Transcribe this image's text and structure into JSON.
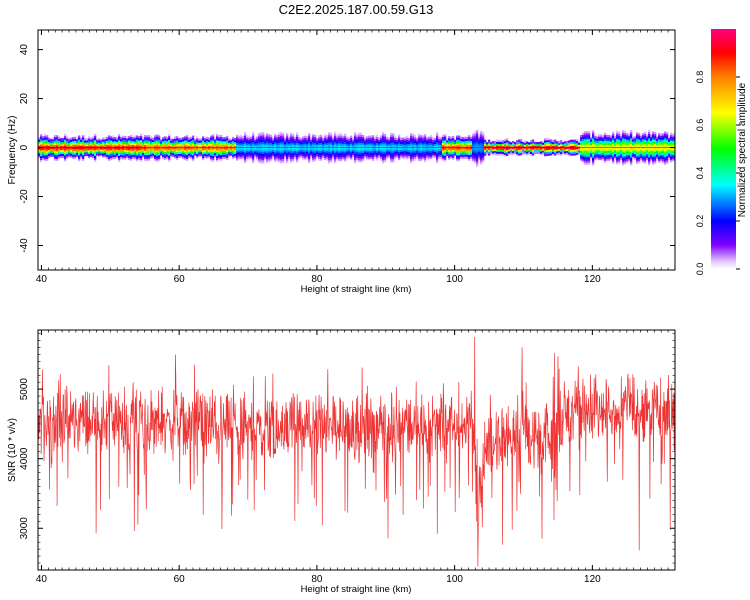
{
  "title": "C2E2.2025.187.00.59.G13",
  "colors": {
    "snr_line": "#ee3333",
    "colorbar": [
      "#7f00ff",
      "#0000ff",
      "#00ffff",
      "#00ff00",
      "#ffff00",
      "#ff7f00",
      "#ff0000",
      "#ff007f"
    ]
  },
  "chart_data": [
    {
      "type": "heatmap",
      "title": "C2E2.2025.187.00.59.G13",
      "xlabel": "Height of straight line (km)",
      "ylabel": "Frequency (Hz)",
      "xlim": [
        39.5,
        132
      ],
      "ylim": [
        -50,
        48
      ],
      "xticks": [
        40,
        60,
        80,
        100,
        120
      ],
      "yticks": [
        -40,
        -20,
        0,
        20,
        40
      ],
      "colorbar": {
        "label": "Normalized spectral amplitude",
        "range": [
          0,
          1
        ],
        "ticks": [
          "0.0",
          "0.2",
          "0.4",
          "0.6",
          "0.8"
        ]
      },
      "segments": [
        {
          "x": [
            39.5,
            55
          ],
          "peak_amplitude": 0.95,
          "half_width_hz": 3
        },
        {
          "x": [
            55,
            68
          ],
          "peak_amplitude": 0.88,
          "half_width_hz": 3
        },
        {
          "x": [
            68,
            98
          ],
          "peak_amplitude": 0.35,
          "half_width_hz": 4
        },
        {
          "x": [
            98,
            102.5
          ],
          "peak_amplitude": 0.9,
          "half_width_hz": 3
        },
        {
          "x": [
            102.5,
            104
          ],
          "peak_amplitude": 0.3,
          "half_width_hz": 5
        },
        {
          "x": [
            104,
            118
          ],
          "peak_amplitude": 1.0,
          "half_width_hz": 2
        },
        {
          "x": [
            118,
            132
          ],
          "peak_amplitude": 0.7,
          "half_width_hz": 4
        }
      ]
    },
    {
      "type": "line",
      "xlabel": "Height of straight line (km)",
      "ylabel": "SNR (10 * v/v)",
      "xlim": [
        39.5,
        132
      ],
      "ylim": [
        2400,
        5850
      ],
      "xticks": [
        40,
        60,
        80,
        100,
        120
      ],
      "yticks": [
        3000,
        4000,
        5000
      ],
      "trend": {
        "x": [
          39.5,
          45,
          55,
          62,
          70,
          80,
          90,
          98,
          101,
          102.5,
          103.3,
          104.5,
          107,
          108.5,
          110,
          111.5,
          114,
          116,
          120,
          126,
          132
        ],
        "y": [
          4500,
          4550,
          4550,
          4500,
          4480,
          4470,
          4460,
          4480,
          4380,
          4800,
          3300,
          4200,
          4300,
          4400,
          4600,
          4200,
          4300,
          4700,
          4700,
          4750,
          4650
        ]
      },
      "spikes": [
        {
          "x": 102.9,
          "y": 5750
        },
        {
          "x": 103.4,
          "y": 2450
        },
        {
          "x": 109.8,
          "y": 5600
        },
        {
          "x": 114.5,
          "y": 5520
        },
        {
          "x": 112.7,
          "y": 2850
        },
        {
          "x": 126.8,
          "y": 2680
        },
        {
          "x": 131.3,
          "y": 2980
        },
        {
          "x": 53.5,
          "y": 2960
        },
        {
          "x": 66.2,
          "y": 2990
        },
        {
          "x": 97.5,
          "y": 2920
        },
        {
          "x": 62.2,
          "y": 5350
        },
        {
          "x": 59.5,
          "y": 5200
        }
      ]
    }
  ]
}
